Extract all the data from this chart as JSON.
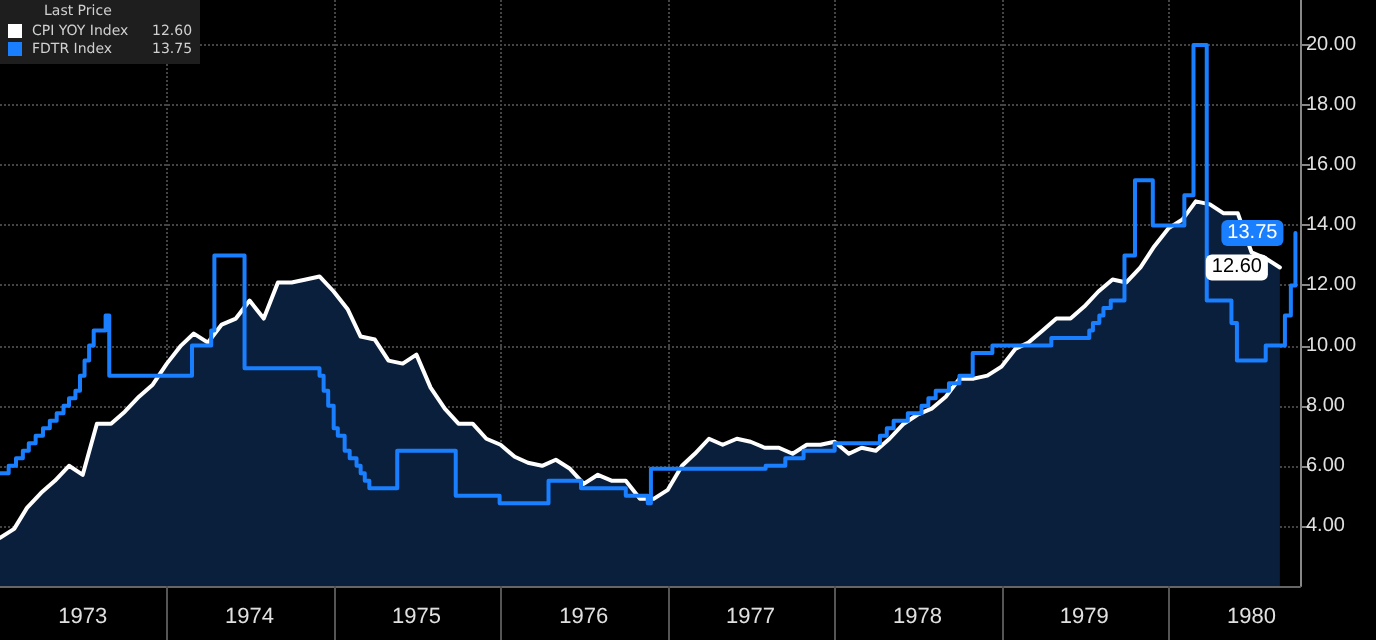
{
  "chart_data": {
    "type": "area",
    "legend_title": "Last Price",
    "legend": "top left",
    "grid": true,
    "xlim": [
      "1973-01-01",
      "1980-10-15"
    ],
    "xticks": [
      {
        "value": "1973-07-01",
        "label": "1973"
      },
      {
        "value": "1974-01-01",
        "label": null
      },
      {
        "value": "1974-07-01",
        "label": "1974"
      },
      {
        "value": "1975-01-01",
        "label": null
      },
      {
        "value": "1975-07-01",
        "label": "1975"
      },
      {
        "value": "1976-01-01",
        "label": null
      },
      {
        "value": "1976-07-01",
        "label": "1976"
      },
      {
        "value": "1977-01-01",
        "label": null
      },
      {
        "value": "1977-07-01",
        "label": "1977"
      },
      {
        "value": "1978-01-01",
        "label": null
      },
      {
        "value": "1978-07-01",
        "label": "1978"
      },
      {
        "value": "1979-01-01",
        "label": null
      },
      {
        "value": "1979-07-01",
        "label": "1979"
      },
      {
        "value": "1980-01-01",
        "label": null
      },
      {
        "value": "1980-07-01",
        "label": "1980"
      }
    ],
    "ylim": [
      2,
      21.5
    ],
    "yticks": [
      {
        "value": 4,
        "label": "4.00"
      },
      {
        "value": 6,
        "label": "6.00"
      },
      {
        "value": 8,
        "label": "8.00"
      },
      {
        "value": 10,
        "label": "10.00"
      },
      {
        "value": 12,
        "label": "12.00"
      },
      {
        "value": 14,
        "label": "14.00"
      },
      {
        "value": 16,
        "label": "16.00"
      },
      {
        "value": 18,
        "label": "18.00"
      },
      {
        "value": 20,
        "label": "20.00"
      }
    ],
    "series": [
      {
        "name": "CPI YOY Index",
        "color": "#ffffff",
        "x": [
          "1973-01",
          "1973-02",
          "1973-03",
          "1973-04",
          "1973-05",
          "1973-06",
          "1973-07",
          "1973-08",
          "1973-09",
          "1973-10",
          "1973-11",
          "1973-12",
          "1974-01",
          "1974-02",
          "1974-03",
          "1974-04",
          "1974-05",
          "1974-06",
          "1974-07",
          "1974-08",
          "1974-09",
          "1974-10",
          "1974-11",
          "1974-12",
          "1975-01",
          "1975-02",
          "1975-03",
          "1975-04",
          "1975-05",
          "1975-06",
          "1975-07",
          "1975-08",
          "1975-09",
          "1975-10",
          "1975-11",
          "1975-12",
          "1976-01",
          "1976-02",
          "1976-03",
          "1976-04",
          "1976-05",
          "1976-06",
          "1976-07",
          "1976-08",
          "1976-09",
          "1976-10",
          "1976-11",
          "1976-12",
          "1977-01",
          "1977-02",
          "1977-03",
          "1977-04",
          "1977-05",
          "1977-06",
          "1977-07",
          "1977-08",
          "1977-09",
          "1977-10",
          "1977-11",
          "1977-12",
          "1978-01",
          "1978-02",
          "1978-03",
          "1978-04",
          "1978-05",
          "1978-06",
          "1978-07",
          "1978-08",
          "1978-09",
          "1978-10",
          "1978-11",
          "1978-12",
          "1979-01",
          "1979-02",
          "1979-03",
          "1979-04",
          "1979-05",
          "1979-06",
          "1979-07",
          "1979-08",
          "1979-09",
          "1979-10",
          "1979-11",
          "1979-12",
          "1980-01",
          "1980-02",
          "1980-03",
          "1980-04",
          "1980-05",
          "1980-06",
          "1980-07",
          "1980-08",
          "1980-09"
        ],
        "values": [
          3.6,
          3.9,
          4.6,
          5.1,
          5.5,
          6.0,
          5.7,
          7.4,
          7.4,
          7.8,
          8.3,
          8.7,
          9.4,
          10.0,
          10.4,
          10.1,
          10.7,
          10.9,
          11.5,
          10.9,
          12.1,
          12.1,
          12.2,
          12.3,
          11.8,
          11.2,
          10.3,
          10.2,
          9.5,
          9.4,
          9.7,
          8.6,
          7.9,
          7.4,
          7.4,
          6.9,
          6.7,
          6.3,
          6.1,
          6.0,
          6.2,
          5.9,
          5.4,
          5.7,
          5.5,
          5.5,
          4.9,
          4.9,
          5.2,
          6.0,
          6.4,
          6.9,
          6.7,
          6.9,
          6.8,
          6.6,
          6.6,
          6.4,
          6.7,
          6.7,
          6.8,
          6.4,
          6.6,
          6.5,
          6.9,
          7.4,
          7.7,
          7.9,
          8.3,
          8.9,
          8.9,
          9.0,
          9.3,
          9.9,
          10.1,
          10.5,
          10.9,
          10.9,
          11.3,
          11.8,
          12.2,
          12.1,
          12.6,
          13.3,
          13.9,
          14.2,
          14.8,
          14.7,
          14.4,
          14.4,
          13.1,
          12.9,
          12.6
        ],
        "value_labels": [
          null,
          null,
          null,
          null,
          null,
          null,
          null,
          null,
          null,
          null,
          null,
          null,
          null,
          null,
          null,
          null,
          null,
          null,
          null,
          null,
          null,
          null,
          null,
          null,
          null,
          null,
          null,
          null,
          null,
          null,
          null,
          null,
          null,
          null,
          null,
          null,
          null,
          null,
          null,
          null,
          null,
          null,
          null,
          null,
          null,
          null,
          null,
          null,
          null,
          null,
          null,
          null,
          null,
          null,
          null,
          null,
          null,
          null,
          null,
          null,
          null,
          null,
          null,
          null,
          null,
          null,
          null,
          null,
          null,
          null,
          null,
          null,
          null,
          null,
          null,
          null,
          null,
          null,
          null,
          null,
          null,
          null,
          null,
          null,
          null,
          null,
          null,
          null,
          null,
          null,
          null,
          null,
          "12.60"
        ]
      },
      {
        "name": "FDTR Index",
        "type": "step",
        "color": "#1a7fff",
        "x": [
          "1973-01-01",
          "1973-01-20",
          "1973-02-05",
          "1973-02-20",
          "1973-03-05",
          "1973-03-20",
          "1973-04-05",
          "1973-04-20",
          "1973-05-05",
          "1973-05-20",
          "1973-06-01",
          "1973-06-15",
          "1973-06-25",
          "1973-07-05",
          "1973-07-15",
          "1973-07-25",
          "1973-08-20",
          "1973-08-28",
          "1974-02-25",
          "1974-04-08",
          "1974-04-15",
          "1974-06-20",
          "1974-12-01",
          "1974-12-10",
          "1974-12-20",
          "1975-01-01",
          "1975-01-10",
          "1975-01-25",
          "1975-02-05",
          "1975-02-20",
          "1975-03-01",
          "1975-03-10",
          "1975-03-20",
          "1975-04-05",
          "1975-05-20",
          "1975-09-25",
          "1975-12-30",
          "1976-04-15",
          "1976-06-25",
          "1976-10-01",
          "1976-11-18",
          "1976-11-25",
          "1977-08-03",
          "1977-09-15",
          "1977-10-25",
          "1978-01-01",
          "1978-04-10",
          "1978-04-25",
          "1978-05-10",
          "1978-06-10",
          "1978-07-10",
          "1978-07-25",
          "1978-08-10",
          "1978-09-08",
          "1978-10-01",
          "1978-10-30",
          "1978-12-12",
          "1979-04-20",
          "1979-07-12",
          "1979-07-20",
          "1979-08-03",
          "1979-08-12",
          "1979-08-28",
          "1979-09-15",
          "1979-09-27",
          "1979-10-20",
          "1979-11-28",
          "1980-02-05",
          "1980-02-25",
          "1980-03-25",
          "1980-05-18",
          "1980-05-30",
          "1980-08-01",
          "1980-09-12",
          "1980-09-25",
          "1980-10-01",
          "1980-10-05"
        ],
        "values": [
          5.75,
          6.0,
          6.25,
          6.5,
          6.75,
          7.0,
          7.25,
          7.5,
          7.75,
          8.0,
          8.25,
          8.5,
          9.0,
          9.5,
          10.0,
          10.5,
          11.0,
          9.0,
          10.0,
          10.5,
          13.0,
          9.25,
          9.0,
          8.5,
          8.0,
          7.25,
          7.0,
          6.5,
          6.25,
          6.0,
          5.75,
          5.5,
          5.25,
          5.25,
          6.5,
          5.0,
          4.75,
          5.5,
          5.25,
          5.0,
          4.75,
          5.9,
          6.0,
          6.25,
          6.5,
          6.75,
          7.0,
          7.25,
          7.5,
          7.75,
          8.0,
          8.25,
          8.5,
          8.75,
          9.0,
          9.75,
          10.0,
          10.25,
          10.5,
          10.75,
          11.0,
          11.25,
          11.5,
          11.5,
          13.0,
          15.5,
          14.0,
          15.0,
          20.0,
          11.5,
          10.75,
          9.5,
          10.0,
          11.0,
          12.0,
          12.0,
          13.75
        ],
        "value_labels": [
          null,
          null,
          null,
          null,
          null,
          null,
          null,
          null,
          null,
          null,
          null,
          null,
          null,
          null,
          null,
          null,
          null,
          null,
          null,
          null,
          null,
          null,
          null,
          null,
          null,
          null,
          null,
          null,
          null,
          null,
          null,
          null,
          null,
          null,
          null,
          null,
          null,
          null,
          null,
          null,
          null,
          null,
          null,
          null,
          null,
          null,
          null,
          null,
          null,
          null,
          null,
          null,
          null,
          null,
          null,
          null,
          null,
          null,
          null,
          null,
          null,
          null,
          null,
          null,
          null,
          null,
          null,
          null,
          null,
          null,
          null,
          null,
          null,
          null,
          null,
          null,
          "13.75"
        ]
      }
    ]
  }
}
